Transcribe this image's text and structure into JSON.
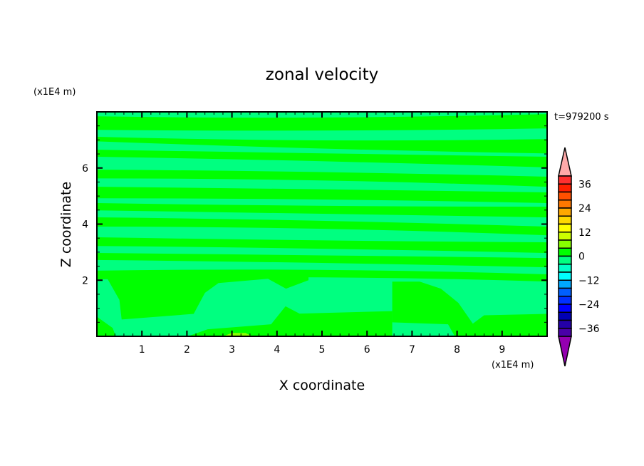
{
  "chart_data": {
    "type": "contour",
    "title": "zonal velocity",
    "xlabel": "X coordinate",
    "ylabel": "Z coordinate",
    "x_unit_label": "(x1E4 m)",
    "y_unit_label": "(x1E4 m)",
    "time_label": "t=979200 s",
    "xlim": [
      0,
      10
    ],
    "ylim": [
      0,
      8
    ],
    "x_ticks": [
      1,
      2,
      3,
      4,
      5,
      6,
      7,
      8,
      9
    ],
    "y_ticks": [
      2,
      4,
      6
    ],
    "grid": false,
    "background_band": "-4 to 0",
    "levels": [
      -40,
      -36,
      -32,
      -28,
      -24,
      -20,
      -16,
      -12,
      -8,
      -4,
      0,
      4,
      8,
      12,
      16,
      20,
      24,
      28,
      32,
      36,
      40
    ],
    "level_colors": [
      "#4A00A8",
      "#2400A8",
      "#0000B4",
      "#0000FF",
      "#0030FF",
      "#0060FF",
      "#00A8FF",
      "#00FFFF",
      "#00FFC8",
      "#00FF80",
      "#00FF00",
      "#88FF00",
      "#CCFF00",
      "#FFFF00",
      "#FFD800",
      "#FFA800",
      "#FF7800",
      "#FF5000",
      "#FF2000",
      "#FF3030"
    ],
    "under_color": "#9400B0",
    "over_color": "#FFAAAA",
    "colorbar_labels": [
      "36",
      "24",
      "12",
      "0",
      "-12",
      "-24",
      "-36"
    ],
    "colorbar_label_values": [
      36,
      24,
      12,
      0,
      -12,
      -24,
      -36
    ],
    "stripes_0_to_4": [
      [
        [
          7.36,
          7.84
        ],
        [
          7.28,
          7.72
        ],
        [
          7.41,
          7.92
        ]
      ],
      [
        [
          6.95,
          7.11
        ],
        [
          6.65,
          6.9
        ],
        [
          6.52,
          7.03
        ]
      ],
      [
        [
          6.4,
          6.65
        ],
        [
          6.27,
          6.52
        ],
        [
          6.02,
          6.4
        ]
      ],
      [
        [
          5.63,
          5.94
        ],
        [
          5.63,
          5.89
        ],
        [
          5.33,
          5.69
        ]
      ],
      [
        [
          4.92,
          5.33
        ],
        [
          4.92,
          5.25
        ],
        [
          4.75,
          5.13
        ]
      ],
      [
        [
          4.49,
          4.75
        ],
        [
          4.37,
          4.62
        ],
        [
          4.24,
          4.62
        ]
      ],
      [
        [
          3.91,
          4.24
        ],
        [
          3.91,
          4.16
        ],
        [
          3.6,
          3.91
        ]
      ],
      [
        [
          3.22,
          3.53
        ],
        [
          3.15,
          3.4
        ],
        [
          2.97,
          3.35
        ]
      ],
      [
        [
          2.72,
          2.97
        ],
        [
          2.64,
          2.89
        ],
        [
          2.46,
          2.79
        ]
      ],
      [
        [
          2.03,
          2.34
        ],
        [
          2.21,
          2.46
        ],
        [
          1.95,
          2.21
        ]
      ]
    ],
    "regions": [
      {
        "band": "0 to 4",
        "points": [
          [
            0.2,
            2.15
          ],
          [
            0.5,
            1.3
          ],
          [
            0.55,
            0.6
          ],
          [
            2.15,
            0.8
          ],
          [
            2.4,
            1.55
          ],
          [
            2.7,
            1.9
          ],
          [
            3.8,
            2.05
          ],
          [
            4.2,
            1.7
          ],
          [
            4.7,
            2.0
          ],
          [
            4.7,
            2.2
          ],
          [
            0.2,
            2.2
          ]
        ]
      },
      {
        "band": "0 to 4",
        "points": [
          [
            0,
            0.7
          ],
          [
            0.35,
            0.3
          ],
          [
            0.42,
            0
          ],
          [
            0,
            0
          ]
        ]
      },
      {
        "band": "0 to 4",
        "points": [
          [
            2.02,
            0
          ],
          [
            2.46,
            0.25
          ],
          [
            3.87,
            0.43
          ],
          [
            4.19,
            1.07
          ],
          [
            4.5,
            0.81
          ],
          [
            6.56,
            0.9
          ],
          [
            6.56,
            0
          ],
          [
            2.02,
            0
          ]
        ]
      },
      {
        "band": "0 to 4",
        "points": [
          [
            6.56,
            1.95
          ],
          [
            7.17,
            1.95
          ],
          [
            7.64,
            1.7
          ],
          [
            8.03,
            1.19
          ],
          [
            8.35,
            0.45
          ],
          [
            8.6,
            0.75
          ],
          [
            10,
            0.8
          ],
          [
            10,
            0
          ],
          [
            7.95,
            0
          ],
          [
            7.8,
            0.43
          ],
          [
            6.56,
            0.5
          ]
        ]
      },
      {
        "band": "4 to 8",
        "points": [
          [
            2.8,
            0
          ],
          [
            3.0,
            0.12
          ],
          [
            3.3,
            0.12
          ],
          [
            3.45,
            0
          ]
        ]
      }
    ]
  }
}
